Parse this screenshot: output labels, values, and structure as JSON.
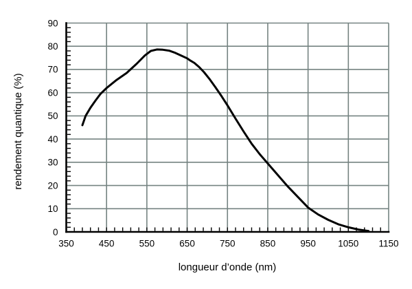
{
  "colors": {
    "background": "#ffffff",
    "curve": "#000000",
    "grid": "#758381",
    "axis": "#000000",
    "text": "#000000"
  },
  "chart_data": {
    "type": "line",
    "title": "",
    "xlabel": "longueur d’onde (nm)",
    "ylabel": "rendement quantique (%)",
    "xlim": [
      350,
      1150
    ],
    "ylim": [
      0,
      90
    ],
    "xticks": [
      350,
      450,
      550,
      650,
      750,
      850,
      950,
      1050,
      1150
    ],
    "yticks": [
      0,
      10,
      20,
      30,
      40,
      50,
      60,
      70,
      80,
      90
    ],
    "x_minor_step": 20,
    "y_minor_step": 2,
    "grid": true,
    "legend": false,
    "series": [
      {
        "name": "rendement quantique",
        "x": [
          390,
          398,
          410,
          422,
          435,
          450,
          475,
          500,
          525,
          545,
          560,
          575,
          590,
          605,
          620,
          635,
          650,
          658,
          668,
          680,
          692,
          705,
          720,
          735,
          750,
          770,
          790,
          810,
          830,
          850,
          875,
          900,
          925,
          950,
          975,
          1000,
          1025,
          1050,
          1075,
          1100
        ],
        "y": [
          46,
          50,
          53.5,
          56.5,
          59.5,
          62,
          65.5,
          68.5,
          72.5,
          76,
          78,
          78.6,
          78.5,
          78.1,
          77.2,
          76,
          74.8,
          73.8,
          72.8,
          71,
          68.8,
          66,
          62.4,
          58.6,
          54.5,
          48.8,
          43.3,
          38,
          33.5,
          29.5,
          24.5,
          19.5,
          15,
          10.5,
          7.5,
          5.2,
          3.3,
          2,
          1,
          0.4
        ]
      }
    ]
  }
}
